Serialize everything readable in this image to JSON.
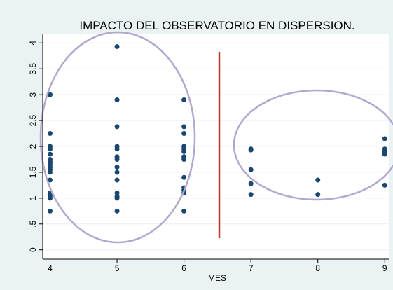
{
  "chart_data": {
    "type": "scatter",
    "title": "IMPACTO DEL OBSERVATORIO EN DISPERSION.",
    "x_label": "MES",
    "x": [
      4,
      4,
      4,
      4,
      4,
      4,
      4,
      4,
      4,
      4,
      4,
      4,
      4,
      4,
      4,
      4,
      5,
      5,
      5,
      5,
      5,
      5,
      5,
      5,
      5,
      5,
      5,
      5,
      5,
      5,
      6,
      6,
      6,
      6,
      6,
      6,
      6,
      6,
      6,
      6,
      6,
      6,
      6,
      7,
      7,
      7,
      7,
      7,
      8,
      8,
      9,
      9,
      9,
      9,
      9
    ],
    "y": [
      3.0,
      2.25,
      2.0,
      1.95,
      1.85,
      1.75,
      1.7,
      1.65,
      1.6,
      1.55,
      1.5,
      1.35,
      1.1,
      1.05,
      1.0,
      0.75,
      3.93,
      2.9,
      2.38,
      2.0,
      1.95,
      1.8,
      1.75,
      1.6,
      1.5,
      1.35,
      1.1,
      1.03,
      1.0,
      0.75,
      2.9,
      2.38,
      2.25,
      2.0,
      1.95,
      1.9,
      1.8,
      1.75,
      1.4,
      1.2,
      1.15,
      1.1,
      0.75,
      1.95,
      1.93,
      1.55,
      1.28,
      1.07,
      1.35,
      1.07,
      2.15,
      1.95,
      1.9,
      1.85,
      1.25
    ],
    "color": "#1a476f",
    "xlim": [
      3.89,
      9.06
    ],
    "xticks": [
      4,
      5,
      6,
      7,
      8,
      9
    ],
    "ylim": [
      -0.18,
      4.18
    ],
    "yticks": [
      0,
      {
        "value": 0.5,
        "label": ".5"
      },
      1,
      1.5,
      2,
      2.5,
      3,
      3.5,
      4
    ],
    "grid": true
  }
}
